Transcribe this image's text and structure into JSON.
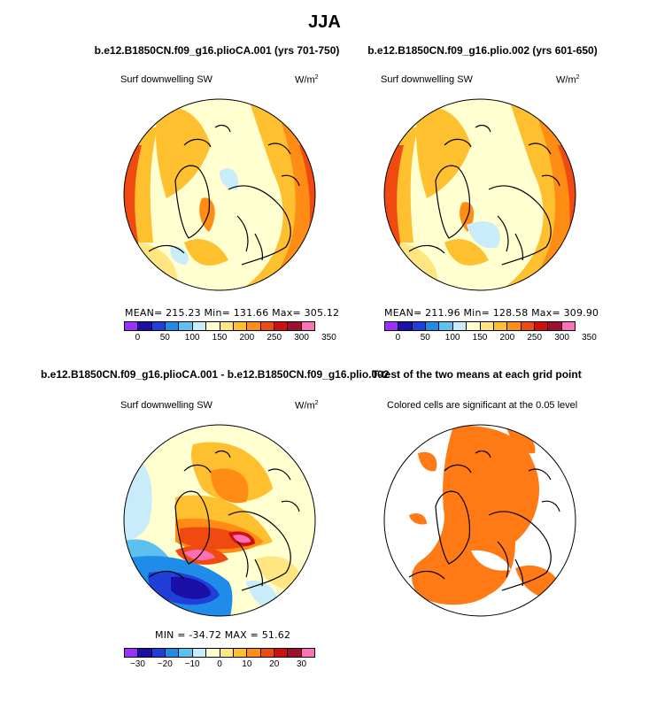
{
  "season": "JJA",
  "panels": {
    "p1": {
      "title": "b.e12.B1850CN.f09_g16.plioCA.001 (yrs 701-750)",
      "variable": "Surf downwelling SW",
      "units": "W/m",
      "units_exp": "2",
      "stats_text": "MEAN= 215.23   Min= 131.66   Max= 305.12"
    },
    "p2": {
      "title": "b.e12.B1850CN.f09_g16.plio.002 (yrs 601-650)",
      "variable": "Surf downwelling SW",
      "units": "W/m",
      "units_exp": "2",
      "stats_text": "MEAN= 211.96   Min= 128.58   Max= 309.90"
    },
    "p3": {
      "title": "b.e12.B1850CN.f09_g16.plioCA.001 - b.e12.B1850CN.f09_g16.plio.002",
      "variable": "Surf downwelling SW",
      "units": "W/m",
      "units_exp": "2",
      "stats_text": "MIN = -34.72  MAX =  51.62"
    },
    "p4": {
      "title": "T-test of the two means at each grid point",
      "subtitle": "Colored cells are significant at the 0.05 level"
    }
  },
  "colorbars": {
    "absolute": {
      "colors": [
        "#9b30ff",
        "#1a10a8",
        "#1f3fd8",
        "#1e8ce8",
        "#5cc0f0",
        "#c8ecfa",
        "#ffffd0",
        "#ffe680",
        "#ffc030",
        "#ff8c14",
        "#f04a10",
        "#d01010",
        "#a0102c",
        "#ff70b8"
      ],
      "ticks": [
        "0",
        "50",
        "100",
        "150",
        "200",
        "250",
        "300",
        "350"
      ]
    },
    "difference": {
      "colors": [
        "#9b30ff",
        "#1a10a8",
        "#1f3fd8",
        "#1e8ce8",
        "#5cc0f0",
        "#c8ecfa",
        "#ffffd0",
        "#ffe680",
        "#ffc030",
        "#ff8c14",
        "#f04a10",
        "#d01010",
        "#a0102c",
        "#ff70b8"
      ],
      "ticks": [
        "−30",
        "−20",
        "−10",
        "0",
        "10",
        "20",
        "30"
      ]
    }
  },
  "chart_data": [
    {
      "type": "heatmap",
      "title": "b.e12.B1850CN.f09_g16.plioCA.001 (yrs 701-750)",
      "variable": "Surf downwelling SW",
      "units": "W/m2",
      "projection": "north polar stereographic",
      "mean": 215.23,
      "min": 131.66,
      "max": 305.12,
      "levels": [
        0,
        50,
        100,
        150,
        200,
        250,
        300,
        350
      ]
    },
    {
      "type": "heatmap",
      "title": "b.e12.B1850CN.f09_g16.plio.002 (yrs 601-650)",
      "variable": "Surf downwelling SW",
      "units": "W/m2",
      "projection": "north polar stereographic",
      "mean": 211.96,
      "min": 128.58,
      "max": 309.9,
      "levels": [
        0,
        50,
        100,
        150,
        200,
        250,
        300,
        350
      ]
    },
    {
      "type": "heatmap",
      "title": "b.e12.B1850CN.f09_g16.plioCA.001 - b.e12.B1850CN.f09_g16.plio.002",
      "variable": "Surf downwelling SW",
      "units": "W/m2",
      "projection": "north polar stereographic",
      "min": -34.72,
      "max": 51.62,
      "levels": [
        -30,
        -20,
        -10,
        0,
        10,
        20,
        30
      ]
    },
    {
      "type": "heatmap",
      "title": "T-test of the two means at each grid point",
      "note": "Colored cells are significant at the 0.05 level",
      "significance_level": 0.05
    }
  ]
}
